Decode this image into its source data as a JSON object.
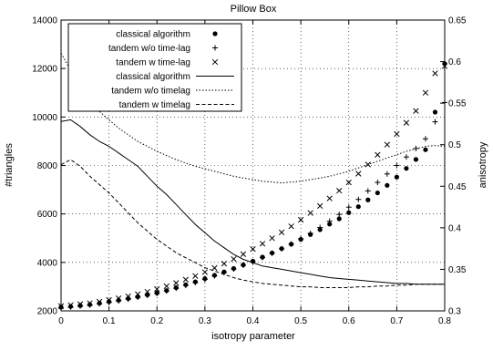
{
  "chart_data": {
    "type": "scatter",
    "title": "Pillow Box",
    "xlabel": "isotropy parameter",
    "ylabel_left": "#triangles",
    "ylabel_right": "anisotropy",
    "xlim": [
      0,
      0.8
    ],
    "ylim_left": [
      2000,
      14000
    ],
    "ylim_right": [
      0.3,
      0.65
    ],
    "x_ticks": [
      "0",
      "0.1",
      "0.2",
      "0.3",
      "0.4",
      "0.5",
      "0.6",
      "0.7",
      "0.8"
    ],
    "y_ticks_left": [
      "2000",
      "4000",
      "6000",
      "8000",
      "10000",
      "12000",
      "14000"
    ],
    "y_ticks_right": [
      "0.3",
      "0.35",
      "0.4",
      "0.45",
      "0.5",
      "0.55",
      "0.6",
      "0.65"
    ],
    "grid": true,
    "legend_position": "top-left",
    "series": [
      {
        "name": "classical algorithm",
        "axis": "left",
        "style": "points-dot",
        "x": [
          0,
          0.02,
          0.04,
          0.06,
          0.08,
          0.1,
          0.12,
          0.14,
          0.16,
          0.18,
          0.2,
          0.22,
          0.24,
          0.26,
          0.28,
          0.3,
          0.32,
          0.34,
          0.36,
          0.38,
          0.4,
          0.42,
          0.44,
          0.46,
          0.48,
          0.5,
          0.52,
          0.54,
          0.56,
          0.58,
          0.6,
          0.62,
          0.64,
          0.66,
          0.68,
          0.7,
          0.72,
          0.74,
          0.76,
          0.78,
          0.8
        ],
        "y": [
          2150,
          2180,
          2220,
          2260,
          2320,
          2380,
          2440,
          2510,
          2580,
          2660,
          2740,
          2840,
          2960,
          3080,
          3200,
          3330,
          3470,
          3610,
          3750,
          3900,
          4050,
          4220,
          4390,
          4570,
          4750,
          4950,
          5150,
          5350,
          5580,
          5800,
          6050,
          6300,
          6580,
          6870,
          7180,
          7520,
          7880,
          8250,
          8650,
          10200,
          12200
        ]
      },
      {
        "name": "tandem w/o time-lag",
        "axis": "left",
        "style": "points-plus",
        "x": [
          0,
          0.02,
          0.04,
          0.06,
          0.08,
          0.1,
          0.12,
          0.14,
          0.16,
          0.18,
          0.2,
          0.22,
          0.24,
          0.26,
          0.28,
          0.3,
          0.32,
          0.34,
          0.36,
          0.38,
          0.4,
          0.42,
          0.44,
          0.46,
          0.48,
          0.5,
          0.52,
          0.54,
          0.56,
          0.58,
          0.6,
          0.62,
          0.64,
          0.66,
          0.68,
          0.7,
          0.72,
          0.74,
          0.76,
          0.78,
          0.8
        ],
        "y": [
          2120,
          2160,
          2200,
          2240,
          2290,
          2350,
          2410,
          2480,
          2560,
          2640,
          2720,
          2820,
          2930,
          3050,
          3170,
          3300,
          3440,
          3580,
          3730,
          3880,
          4030,
          4200,
          4380,
          4560,
          4760,
          4980,
          5200,
          5440,
          5700,
          5980,
          6280,
          6600,
          6950,
          7300,
          7650,
          8000,
          8350,
          8700,
          9100,
          9800,
          10600
        ]
      },
      {
        "name": "tandem w time-lag",
        "axis": "left",
        "style": "points-x",
        "x": [
          0,
          0.02,
          0.04,
          0.06,
          0.08,
          0.1,
          0.12,
          0.14,
          0.16,
          0.18,
          0.2,
          0.22,
          0.24,
          0.26,
          0.28,
          0.3,
          0.32,
          0.34,
          0.36,
          0.38,
          0.4,
          0.42,
          0.44,
          0.46,
          0.48,
          0.5,
          0.52,
          0.54,
          0.56,
          0.58,
          0.6,
          0.62,
          0.64,
          0.66,
          0.68,
          0.7,
          0.72,
          0.74,
          0.76,
          0.78,
          0.8
        ],
        "y": [
          2200,
          2240,
          2280,
          2320,
          2380,
          2450,
          2520,
          2600,
          2690,
          2790,
          2900,
          3020,
          3150,
          3290,
          3440,
          3600,
          3770,
          3950,
          4140,
          4340,
          4550,
          4770,
          5000,
          5240,
          5490,
          5760,
          6040,
          6330,
          6640,
          6960,
          7300,
          7660,
          8040,
          8440,
          8860,
          9300,
          9760,
          10250,
          11000,
          11800,
          12100
        ]
      },
      {
        "name": "classical algorithm",
        "axis": "right",
        "style": "line-solid",
        "x": [
          0,
          0.02,
          0.04,
          0.06,
          0.08,
          0.1,
          0.12,
          0.14,
          0.16,
          0.18,
          0.2,
          0.22,
          0.24,
          0.26,
          0.28,
          0.3,
          0.32,
          0.34,
          0.36,
          0.38,
          0.4,
          0.42,
          0.44,
          0.46,
          0.48,
          0.5,
          0.52,
          0.54,
          0.56,
          0.58,
          0.6,
          0.62,
          0.64,
          0.66,
          0.68,
          0.7,
          0.72,
          0.74,
          0.76,
          0.78,
          0.8
        ],
        "y": [
          0.528,
          0.53,
          0.522,
          0.512,
          0.504,
          0.498,
          0.49,
          0.482,
          0.474,
          0.462,
          0.45,
          0.44,
          0.428,
          0.416,
          0.404,
          0.394,
          0.384,
          0.376,
          0.368,
          0.362,
          0.358,
          0.354,
          0.352,
          0.35,
          0.348,
          0.346,
          0.344,
          0.342,
          0.34,
          0.339,
          0.338,
          0.337,
          0.336,
          0.335,
          0.334,
          0.333,
          0.333,
          0.332,
          0.332,
          0.332,
          0.332
        ]
      },
      {
        "name": "tandem w/o timelag",
        "axis": "right",
        "style": "line-dotted",
        "x": [
          0,
          0.02,
          0.04,
          0.06,
          0.08,
          0.1,
          0.12,
          0.14,
          0.16,
          0.18,
          0.2,
          0.22,
          0.24,
          0.26,
          0.28,
          0.3,
          0.32,
          0.34,
          0.36,
          0.38,
          0.4,
          0.42,
          0.44,
          0.46,
          0.48,
          0.5,
          0.52,
          0.54,
          0.56,
          0.58,
          0.6,
          0.62,
          0.64,
          0.66,
          0.68,
          0.7,
          0.72,
          0.74,
          0.76,
          0.78,
          0.8
        ],
        "y": [
          0.61,
          0.59,
          0.568,
          0.552,
          0.54,
          0.53,
          0.52,
          0.512,
          0.504,
          0.498,
          0.492,
          0.487,
          0.482,
          0.478,
          0.474,
          0.471,
          0.468,
          0.465,
          0.462,
          0.46,
          0.458,
          0.456,
          0.455,
          0.454,
          0.455,
          0.456,
          0.458,
          0.46,
          0.462,
          0.465,
          0.468,
          0.472,
          0.476,
          0.48,
          0.484,
          0.488,
          0.492,
          0.495,
          0.498,
          0.499,
          0.498
        ]
      },
      {
        "name": "tandem w timelag",
        "axis": "right",
        "style": "line-dashed",
        "x": [
          0,
          0.02,
          0.04,
          0.06,
          0.08,
          0.1,
          0.12,
          0.14,
          0.16,
          0.18,
          0.2,
          0.22,
          0.24,
          0.26,
          0.28,
          0.3,
          0.32,
          0.34,
          0.36,
          0.38,
          0.4,
          0.42,
          0.44,
          0.46,
          0.48,
          0.5,
          0.52,
          0.54,
          0.56,
          0.58,
          0.6,
          0.62,
          0.64,
          0.66,
          0.68,
          0.7,
          0.72,
          0.74,
          0.76,
          0.78,
          0.8
        ],
        "y": [
          0.476,
          0.482,
          0.474,
          0.462,
          0.452,
          0.442,
          0.43,
          0.418,
          0.406,
          0.396,
          0.386,
          0.378,
          0.37,
          0.364,
          0.358,
          0.352,
          0.348,
          0.344,
          0.34,
          0.337,
          0.335,
          0.333,
          0.332,
          0.331,
          0.33,
          0.329,
          0.329,
          0.328,
          0.328,
          0.328,
          0.328,
          0.329,
          0.329,
          0.33,
          0.33,
          0.331,
          0.331,
          0.332,
          0.332,
          0.332,
          0.332
        ]
      }
    ]
  }
}
